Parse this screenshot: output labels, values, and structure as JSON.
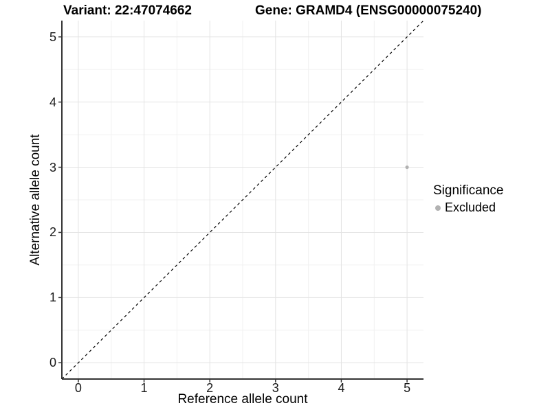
{
  "chart_data": {
    "type": "scatter",
    "titles": {
      "left": "Variant: 22:47074662",
      "right": "Gene: GRAMD4 (ENSG00000075240)"
    },
    "xlabel": "Reference allele count",
    "ylabel": "Alternative allele count",
    "xlim": [
      -0.25,
      5.25
    ],
    "ylim": [
      -0.25,
      5.25
    ],
    "x_ticks": [
      0,
      1,
      2,
      3,
      4,
      5
    ],
    "y_ticks": [
      0,
      1,
      2,
      3,
      4,
      5
    ],
    "grid": {
      "major": true,
      "minor": true,
      "major_color": "#e3e3e3",
      "minor_color": "#f1f1f1"
    },
    "reference_line": {
      "style": "dashed",
      "color": "#000000",
      "from": [
        -0.25,
        -0.25
      ],
      "to": [
        5.25,
        5.25
      ]
    },
    "series": [
      {
        "name": "Excluded",
        "color": "#b2b2b2",
        "points": [
          {
            "x": 5,
            "y": 3
          }
        ]
      }
    ],
    "legend": {
      "title": "Significance",
      "position": "right",
      "entries": [
        {
          "label": "Excluded",
          "color": "#b2b2b2"
        }
      ]
    },
    "axis_color": "#333333",
    "background": "#ffffff"
  }
}
